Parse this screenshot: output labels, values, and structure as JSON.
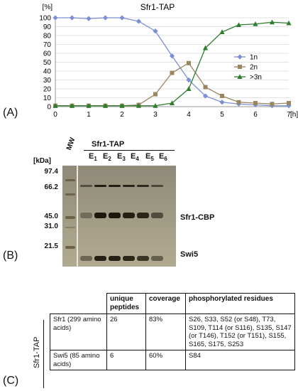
{
  "figure": {
    "panel_labels": [
      "(A)",
      "(B)",
      "(C)"
    ]
  },
  "chart_data": {
    "type": "line",
    "title": "Sfr1-TAP",
    "y_unit_label": "[%]",
    "x_unit_label": "[h]",
    "xlim": [
      0,
      7
    ],
    "ylim": [
      0,
      100
    ],
    "x_ticks": [
      0,
      1,
      2,
      3,
      4,
      5,
      6,
      7
    ],
    "y_ticks": [
      0,
      10,
      20,
      30,
      40,
      50,
      60,
      70,
      80,
      90,
      100
    ],
    "grid": "horizontal",
    "legend_position": "right",
    "series": [
      {
        "name": "1n",
        "color": "#7b8fd6",
        "marker": "diamond",
        "x": [
          0,
          0.5,
          1,
          1.5,
          2,
          2.5,
          3,
          3.5,
          4,
          4.5,
          5,
          5.5,
          6,
          6.5,
          7
        ],
        "y": [
          100,
          100,
          99,
          100,
          100,
          96,
          85,
          57,
          30,
          12,
          5,
          3,
          2,
          1,
          1
        ]
      },
      {
        "name": "2n",
        "color": "#9a8660",
        "marker": "square",
        "x": [
          0,
          0.5,
          1,
          1.5,
          2,
          2.5,
          3,
          3.5,
          4,
          4.5,
          5,
          5.5,
          6,
          6.5,
          7
        ],
        "y": [
          1,
          1,
          1,
          1,
          1,
          2,
          14,
          38,
          49,
          22,
          12,
          5,
          4,
          3,
          4
        ]
      },
      {
        "name": ">3n",
        "color": "#2e7d2e",
        "marker": "triangle",
        "x": [
          0,
          0.5,
          1,
          1.5,
          2,
          2.5,
          3,
          3.5,
          4,
          4.5,
          5,
          5.5,
          6,
          6.5,
          7
        ],
        "y": [
          1,
          1,
          1,
          1,
          1,
          1,
          1,
          4,
          20,
          66,
          84,
          92,
          93,
          95,
          94
        ]
      }
    ]
  },
  "gel": {
    "header": "Sfr1-TAP",
    "kda_label": "[kDa]",
    "mw_label": "MW",
    "lanes": [
      {
        "E": "E",
        "sub": "1"
      },
      {
        "E": "E",
        "sub": "2"
      },
      {
        "E": "E",
        "sub": "3"
      },
      {
        "E": "E",
        "sub": "4"
      },
      {
        "E": "E",
        "sub": "5"
      },
      {
        "E": "E",
        "sub": "6"
      }
    ],
    "markers": [
      "97.4",
      "66.2",
      "45.0",
      "31.0",
      "21.5"
    ],
    "band_labels": {
      "sfr1": "Sfr1-CBP",
      "swi5": "Swi5"
    }
  },
  "table": {
    "side_label": "Sfr1-TAP",
    "headers": [
      "unique peptides",
      "coverage",
      "phosphorylated residues"
    ],
    "rows": [
      {
        "protein": "Sfr1 (299 amino acids)",
        "peptides": "26",
        "coverage": "83%",
        "residues": "S26, S33, S52 (or S48), T73, S109, T114 (or S116), S135, S147 (or T146), T152 (or T151), S155, S165, S175, S253"
      },
      {
        "protein": "Swi5 (85 amino acids)",
        "peptides": "6",
        "coverage": "60%",
        "residues": "S84"
      }
    ]
  }
}
